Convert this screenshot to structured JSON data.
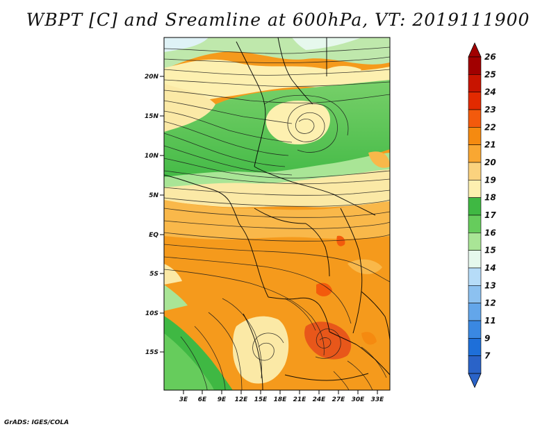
{
  "title": "WBPT [C] and Sreamline at 600hPa, VT: 2019111900",
  "footer": "GrADS: IGES/COLA",
  "map": {
    "lon_range": [
      0,
      35
    ],
    "lat_range": [
      -20,
      25
    ],
    "lat_ticks": [
      "20N",
      "15N",
      "10N",
      "5N",
      "EQ",
      "5S",
      "10S",
      "15S"
    ],
    "lon_ticks": [
      "3E",
      "6E",
      "9E",
      "12E",
      "15E",
      "18E",
      "21E",
      "24E",
      "27E",
      "30E",
      "33E"
    ]
  },
  "colorbar": {
    "levels": [
      "26",
      "25",
      "24",
      "23",
      "22",
      "21",
      "20",
      "19",
      "18",
      "17",
      "16",
      "15",
      "14",
      "13",
      "12",
      "11",
      "9",
      "7"
    ],
    "colors": [
      "#a10000",
      "#c81400",
      "#e22a00",
      "#f35a0c",
      "#f58a10",
      "#f9a732",
      "#fbd27e",
      "#fdf0b0",
      "#3fb843",
      "#66cc5c",
      "#a9e596",
      "#e6f8ed",
      "#b6dcf8",
      "#8cc1f0",
      "#63a6ea",
      "#3a88e2",
      "#1e6fd9",
      "#2a63c8"
    ]
  },
  "colors": {
    "orange": "#f59a1c",
    "light_orange": "#f9b84a",
    "pale_yellow": "#fbe9a6",
    "yellow": "#fdf0b0",
    "green": "#3fb843",
    "light_green": "#78d06a",
    "pale_green": "#bfe8ac",
    "light_blue": "#dff2f6",
    "red_orange": "#e8571a"
  }
}
